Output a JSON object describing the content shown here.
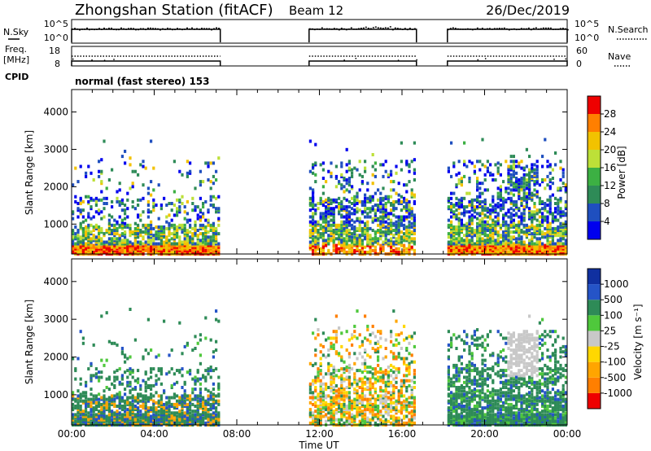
{
  "header": {
    "station": "Zhongshan Station (fitACF)",
    "beam": "Beam 12",
    "date": "26/Dec/2019",
    "cpid_label": "CPID",
    "mode": "normal (fast stereo) 153"
  },
  "top_panels": {
    "nsky_label": "N.Sky",
    "nsky_ticks": [
      "10^5",
      "10^0"
    ],
    "nsearch_label": "N.Search",
    "nsearch_ticks": [
      "10^5",
      "10^0"
    ],
    "freq_label": "Freq.",
    "freq_unit": "[MHz]",
    "freq_ticks": [
      "18",
      "8"
    ],
    "nave_label": "Nave",
    "nave_ticks": [
      "60",
      "0"
    ]
  },
  "colors": {
    "power": [
      "#0000ee",
      "#1f4fbf",
      "#2e8b57",
      "#3cb043",
      "#bde038",
      "#f2c200",
      "#ff7f00",
      "#ee0000"
    ],
    "velocity": [
      "#ee0000",
      "#ff7f00",
      "#ffa500",
      "#ffd700",
      "#c8c8c8",
      "#4fc83c",
      "#2e8b57",
      "#2554c7",
      "#1030a0"
    ]
  },
  "chart_data": [
    {
      "type": "heatmap",
      "name": "power",
      "ylabel": "Slant Range [km]",
      "yticks": [
        "1000",
        "2000",
        "3000",
        "4000"
      ],
      "ylim": [
        200,
        4600
      ],
      "xlim_hours": [
        0,
        24
      ],
      "colorbar_label": "Power [dB]",
      "colorbar_ticks": [
        "4",
        "8",
        "12",
        "16",
        "20",
        "24",
        "28"
      ],
      "colorbar_range": [
        0,
        32
      ],
      "data_gaps_hours": [
        [
          7.2,
          11.5
        ],
        [
          16.7,
          18.2
        ]
      ]
    },
    {
      "type": "heatmap",
      "name": "velocity",
      "ylabel": "Slant Range [km]",
      "yticks": [
        "1000",
        "2000",
        "3000",
        "4000"
      ],
      "ylim": [
        200,
        4600
      ],
      "xlim_hours": [
        0,
        24
      ],
      "colorbar_label": "Velocity [m s⁻¹]",
      "colorbar_ticks": [
        "1000",
        "500",
        "100",
        "25",
        "-25",
        "-100",
        "-500",
        "-1000"
      ],
      "data_gaps_hours": [
        [
          7.2,
          11.5
        ],
        [
          16.7,
          18.2
        ]
      ]
    }
  ],
  "time_axis": {
    "label": "Time UT",
    "ticks": [
      "00:00",
      "04:00",
      "08:00",
      "12:00",
      "16:00",
      "20:00",
      "00:00"
    ]
  }
}
